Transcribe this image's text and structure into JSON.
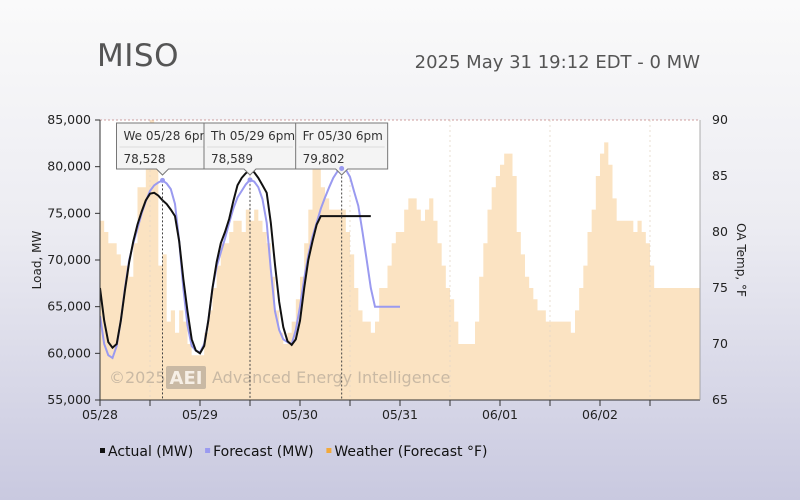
{
  "header": {
    "title": "MISO",
    "subtitle": "2025 May 31 19:12 EDT - 0 MW"
  },
  "watermark": {
    "copyright": "©2025",
    "logo_text": "AEI",
    "company": "Advanced Energy Intelligence"
  },
  "colors": {
    "actual": "#111111",
    "forecast": "#9a9af0",
    "weather_fill": "#fbe3c2",
    "weather_legend": "#f2a93b"
  },
  "chart_data": {
    "type": "line",
    "x_ticks": [
      "05/28",
      "05/29",
      "05/30",
      "05/31",
      "06/01",
      "06/02"
    ],
    "ylabel": "Load, MW",
    "y2label": "OA Temp, °F",
    "ylim": [
      55000,
      85000
    ],
    "y_ticks": [
      "55,000",
      "60,000",
      "65,000",
      "70,000",
      "75,000",
      "80,000",
      "85,000"
    ],
    "y2lim": [
      65,
      90
    ],
    "y2_ticks": [
      "65",
      "70",
      "75",
      "80",
      "85",
      "90"
    ],
    "x_range_hours": [
      0,
      144
    ],
    "series": [
      {
        "name": "Actual (MW)",
        "type": "line",
        "x_hours": [
          0,
          1,
          2,
          3,
          4,
          5,
          6,
          7,
          8,
          9,
          10,
          11,
          12,
          13,
          14,
          15,
          16,
          17,
          18,
          19,
          20,
          21,
          22,
          23,
          24,
          25,
          26,
          27,
          28,
          29,
          30,
          31,
          32,
          33,
          34,
          35,
          36,
          37,
          38,
          39,
          40,
          41,
          42,
          43,
          44,
          45,
          46,
          47,
          48,
          49,
          50,
          51,
          52,
          53,
          54,
          55,
          56,
          57,
          58,
          59,
          60,
          61,
          62,
          63,
          64,
          65,
          66,
          67,
          68,
          69,
          70,
          71,
          72,
          73,
          74,
          75,
          76,
          77,
          78,
          79,
          80,
          81,
          82,
          83,
          84,
          85,
          86,
          87,
          88,
          89,
          90,
          91,
          92,
          93,
          94,
          95,
          96,
          97,
          98,
          99,
          100,
          101,
          102,
          103,
          104,
          105,
          106,
          107,
          108,
          109,
          110,
          111,
          112,
          113,
          114,
          115,
          116,
          117,
          118,
          119,
          120,
          121,
          122,
          123,
          124,
          125,
          126,
          127,
          128,
          129,
          130,
          131,
          132,
          133,
          134,
          135,
          136,
          137,
          138,
          139,
          140,
          141,
          142,
          143,
          144
        ],
        "x_hours_comment": "",
        "x": [
          0,
          1,
          2,
          3,
          4,
          5,
          6,
          7,
          8,
          9,
          10,
          11,
          12,
          13,
          14,
          15,
          16,
          17,
          18,
          19,
          20,
          21,
          22,
          23,
          24,
          25,
          26,
          27,
          28,
          29,
          30,
          31,
          32,
          33,
          34,
          35,
          36,
          37,
          38,
          39,
          40,
          41,
          42,
          43,
          44,
          45,
          46,
          47,
          48,
          49,
          50,
          51,
          52,
          53,
          54,
          55,
          56,
          57,
          58,
          59,
          60,
          61,
          62,
          63,
          64,
          65
        ],
        "values": [
          67000,
          63500,
          61200,
          60600,
          61000,
          63500,
          66800,
          69800,
          72000,
          73800,
          75200,
          76400,
          77100,
          77200,
          76900,
          76400,
          76000,
          75400,
          74700,
          72000,
          68000,
          64500,
          61500,
          60300,
          60000,
          60800,
          63500,
          67000,
          69800,
          71800,
          73000,
          74400,
          76300,
          78000,
          78800,
          79300,
          79600,
          79400,
          78800,
          78000,
          77200,
          74000,
          69500,
          65500,
          62800,
          61300,
          60900,
          61500,
          63500,
          67000,
          70000,
          72000,
          73800,
          74700,
          74700,
          74700,
          74700,
          74700,
          74700,
          74700,
          74700,
          74700,
          74700,
          74700,
          74700,
          74700
        ]
      },
      {
        "name": "Forecast (MW)",
        "type": "line",
        "x": [
          0,
          1,
          2,
          3,
          4,
          5,
          6,
          7,
          8,
          9,
          10,
          11,
          12,
          13,
          14,
          15,
          16,
          17,
          18,
          19,
          20,
          21,
          22,
          23,
          24,
          25,
          26,
          27,
          28,
          29,
          30,
          31,
          32,
          33,
          34,
          35,
          36,
          37,
          38,
          39,
          40,
          41,
          42,
          43,
          44,
          45,
          46,
          47,
          48,
          49,
          50,
          51,
          52,
          53,
          54,
          55,
          56,
          57,
          58,
          59,
          60,
          61,
          62,
          63,
          64,
          65,
          66,
          67,
          68,
          69,
          70,
          71,
          72
        ],
        "values": [
          64000,
          61000,
          59800,
          59500,
          60800,
          63500,
          67000,
          70000,
          71800,
          73400,
          75000,
          76300,
          77400,
          78000,
          78300,
          78528,
          78200,
          77600,
          76000,
          72000,
          67000,
          63000,
          60800,
          60300,
          60100,
          61000,
          63500,
          67000,
          69300,
          70800,
          72300,
          74000,
          75500,
          76700,
          77400,
          78100,
          78589,
          78400,
          77800,
          76500,
          74000,
          69000,
          64500,
          62500,
          61500,
          61200,
          61000,
          62500,
          65000,
          68000,
          70500,
          72500,
          74000,
          75500,
          76700,
          77800,
          78800,
          79500,
          79802,
          79700,
          78900,
          77300,
          75800,
          73000,
          70000,
          67000,
          65000,
          65000,
          65000,
          65000,
          65000,
          65000,
          65000
        ]
      },
      {
        "name": "Weather (Forecast °F)",
        "type": "area",
        "axis": "right",
        "x": [
          0,
          1,
          2,
          3,
          4,
          5,
          6,
          7,
          8,
          9,
          10,
          11,
          12,
          13,
          14,
          15,
          16,
          17,
          18,
          19,
          20,
          21,
          22,
          23,
          24,
          25,
          26,
          27,
          28,
          29,
          30,
          31,
          32,
          33,
          34,
          35,
          36,
          37,
          38,
          39,
          40,
          41,
          42,
          43,
          44,
          45,
          46,
          47,
          48,
          49,
          50,
          51,
          52,
          53,
          54,
          55,
          56,
          57,
          58,
          59,
          60,
          61,
          62,
          63,
          64,
          65,
          66,
          67,
          68,
          69,
          70,
          71,
          72,
          73,
          74,
          75,
          76,
          77,
          78,
          79,
          80,
          81,
          82,
          83,
          84,
          85,
          86,
          87,
          88,
          89,
          90,
          91,
          92,
          93,
          94,
          95,
          96,
          97,
          98,
          99,
          100,
          101,
          102,
          103,
          104,
          105,
          106,
          107,
          108,
          109,
          110,
          111,
          112,
          113,
          114,
          115,
          116,
          117,
          118,
          119,
          120,
          121,
          122,
          123,
          124,
          125,
          126,
          127,
          128,
          129,
          130,
          131,
          132,
          133,
          134,
          135,
          136,
          137,
          138,
          139,
          140,
          141,
          142,
          143,
          144
        ],
        "values": [
          81,
          80,
          79,
          79,
          78,
          77,
          77,
          76,
          79,
          84,
          84,
          86,
          90,
          89,
          77,
          78,
          72,
          73,
          71,
          73,
          72,
          70,
          69,
          69,
          69,
          71,
          73,
          75,
          77,
          79,
          79,
          80,
          81,
          81,
          80,
          82,
          81,
          82,
          81,
          80,
          79,
          76,
          73,
          71,
          70,
          71,
          72,
          74,
          76,
          79,
          82,
          87,
          86,
          84,
          83,
          82,
          82,
          82,
          82,
          80,
          78,
          75,
          73,
          72,
          72,
          71,
          72,
          75,
          75,
          77,
          79,
          80,
          80,
          82,
          83,
          83,
          82,
          81,
          82,
          83,
          81,
          79,
          77,
          75,
          74,
          72,
          70,
          70,
          70,
          70,
          72,
          76,
          79,
          82,
          84,
          85,
          86,
          87,
          87,
          85,
          80,
          78,
          76,
          75,
          74,
          73,
          73,
          72,
          72,
          72,
          72,
          72,
          72,
          71,
          73,
          75,
          77,
          80,
          82,
          85,
          87,
          88,
          86,
          83,
          81,
          81,
          81,
          81,
          80,
          81,
          80,
          79,
          77,
          75,
          75,
          75,
          75,
          75,
          75,
          75,
          75,
          75,
          75,
          75,
          75
        ]
      }
    ],
    "annotations": [
      {
        "label": "We 05/28 6pm",
        "value": "78,528",
        "x_hour": 15,
        "y": 78528
      },
      {
        "label": "Th 05/29 6pm",
        "value": "78,589",
        "x_hour": 36,
        "y": 78589
      },
      {
        "label": "Fr 05/30 6pm",
        "value": "79,802",
        "x_hour": 58,
        "y": 79802
      }
    ],
    "legend": [
      {
        "label": "Actual (MW)",
        "color": "#111111"
      },
      {
        "label": "Forecast (MW)",
        "color": "#9a9af0"
      },
      {
        "label": "Weather (Forecast °F)",
        "color": "#f2a93b"
      }
    ],
    "legend_position": "bottom-left",
    "grid": "vertical-dashed"
  }
}
